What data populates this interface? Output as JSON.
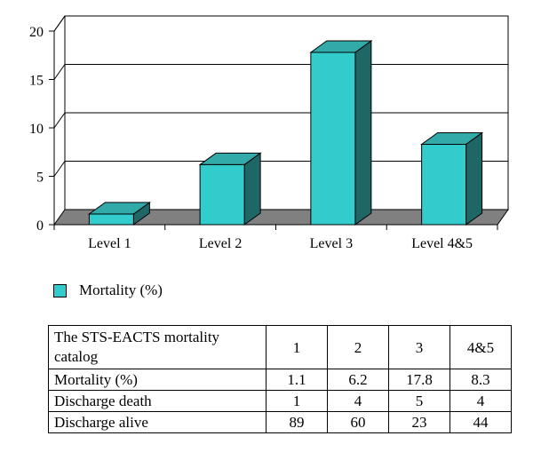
{
  "chart_data": {
    "type": "bar",
    "categories": [
      "Level 1",
      "Level 2",
      "Level 3",
      "Level 4&5"
    ],
    "series": [
      {
        "name": "Mortality (%)",
        "values": [
          1.1,
          6.2,
          17.8,
          8.3
        ]
      }
    ],
    "yticks": [
      "0",
      "5",
      "10",
      "15",
      "20"
    ],
    "ylim": [
      0,
      20
    ],
    "grid": true,
    "legend_position": "bottom-left",
    "style": "3d",
    "colors": {
      "bar_front": "#33cccc",
      "bar_top": "#33aaaa",
      "bar_side": "#1f6666",
      "floor": "#808080"
    }
  },
  "legend": {
    "label": "Mortality (%)"
  },
  "table": {
    "header": [
      "The STS-EACTS mortality catalog",
      "1",
      "2",
      "3",
      "4&5"
    ],
    "rows": [
      {
        "label": "Mortality (%)",
        "values": [
          "1.1",
          "6.2",
          "17.8",
          "8.3"
        ]
      },
      {
        "label": "Discharge death",
        "values": [
          "1",
          "4",
          "5",
          "4"
        ]
      },
      {
        "label": "Discharge alive",
        "values": [
          "89",
          "60",
          "23",
          "44"
        ]
      }
    ]
  }
}
